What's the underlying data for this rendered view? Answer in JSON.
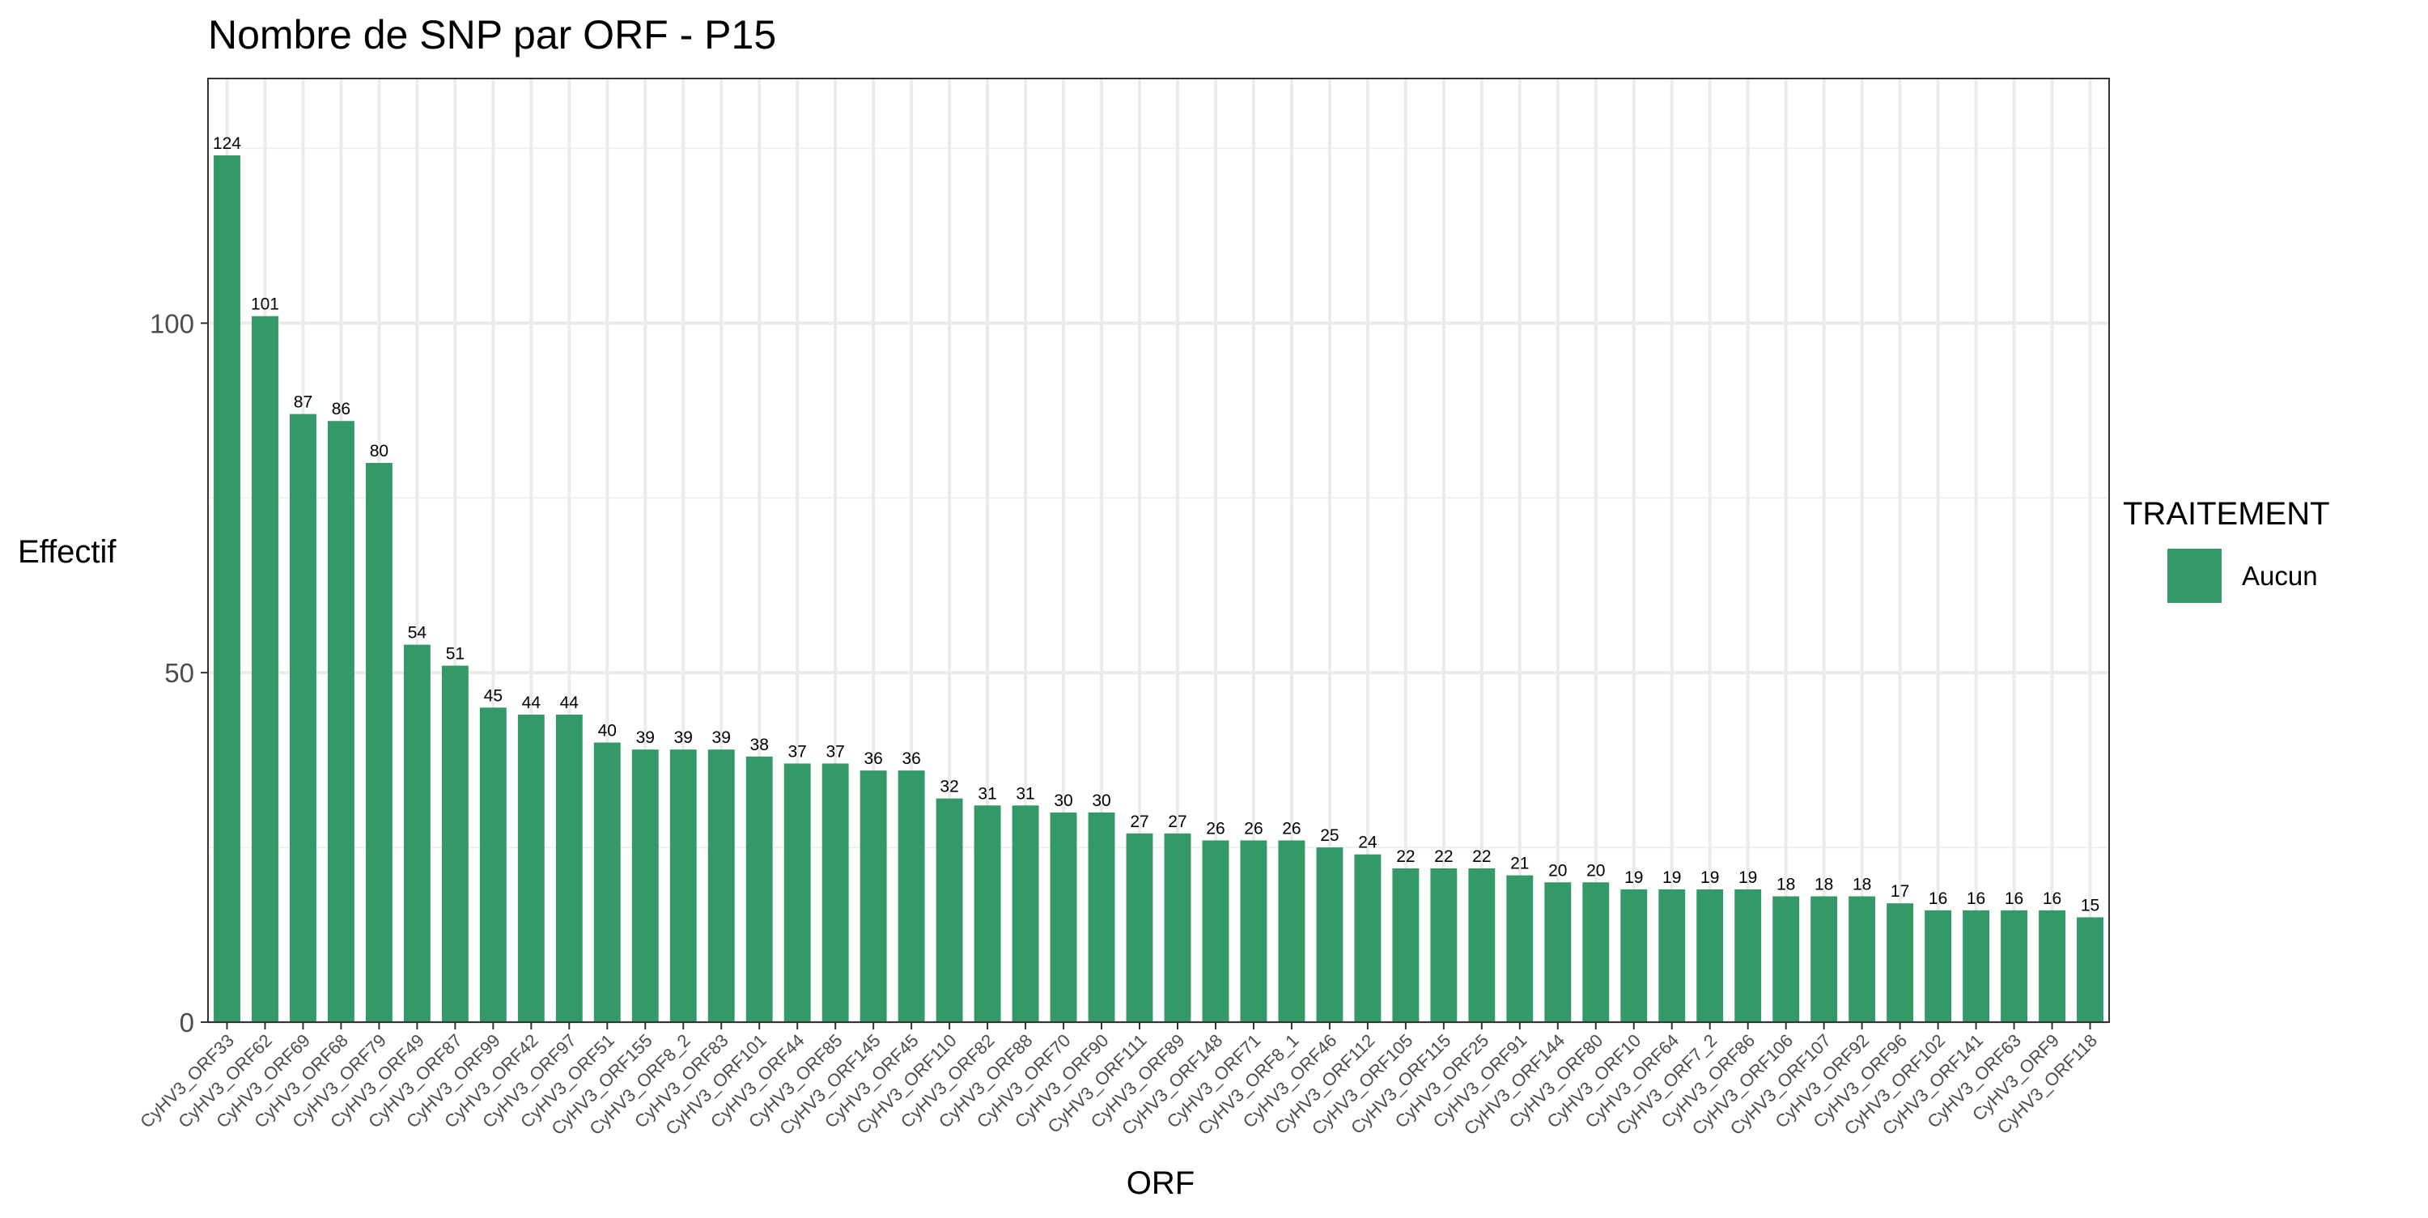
{
  "chart_data": {
    "type": "bar",
    "title": "Nombre de SNP par ORF - P15",
    "xlabel": "ORF",
    "ylabel": "Effectif",
    "ylim": [
      0,
      135
    ],
    "yticks": [
      0,
      50,
      100
    ],
    "grid": true,
    "legend": {
      "title": "TRAITEMENT",
      "placement": "right",
      "entries": [
        {
          "label": "Aucun",
          "color": "#339966"
        }
      ]
    },
    "bar_color": "#339966",
    "categories": [
      "CyHV3_ORF33",
      "CyHV3_ORF62",
      "CyHV3_ORF69",
      "CyHV3_ORF68",
      "CyHV3_ORF79",
      "CyHV3_ORF49",
      "CyHV3_ORF87",
      "CyHV3_ORF99",
      "CyHV3_ORF42",
      "CyHV3_ORF97",
      "CyHV3_ORF51",
      "CyHV3_ORF155",
      "CyHV3_ORF8_2",
      "CyHV3_ORF83",
      "CyHV3_ORF101",
      "CyHV3_ORF44",
      "CyHV3_ORF85",
      "CyHV3_ORF145",
      "CyHV3_ORF45",
      "CyHV3_ORF110",
      "CyHV3_ORF82",
      "CyHV3_ORF88",
      "CyHV3_ORF70",
      "CyHV3_ORF90",
      "CyHV3_ORF111",
      "CyHV3_ORF89",
      "CyHV3_ORF148",
      "CyHV3_ORF71",
      "CyHV3_ORF8_1",
      "CyHV3_ORF46",
      "CyHV3_ORF112",
      "CyHV3_ORF105",
      "CyHV3_ORF115",
      "CyHV3_ORF25",
      "CyHV3_ORF91",
      "CyHV3_ORF144",
      "CyHV3_ORF80",
      "CyHV3_ORF10",
      "CyHV3_ORF64",
      "CyHV3_ORF7_2",
      "CyHV3_ORF86",
      "CyHV3_ORF106",
      "CyHV3_ORF107",
      "CyHV3_ORF92",
      "CyHV3_ORF96",
      "CyHV3_ORF102",
      "CyHV3_ORF141",
      "CyHV3_ORF63",
      "CyHV3_ORF9",
      "CyHV3_ORF118"
    ],
    "values": [
      124,
      101,
      87,
      86,
      80,
      54,
      51,
      45,
      44,
      44,
      40,
      39,
      39,
      39,
      38,
      37,
      37,
      36,
      36,
      32,
      31,
      31,
      30,
      30,
      27,
      27,
      26,
      26,
      26,
      25,
      24,
      22,
      22,
      22,
      21,
      20,
      20,
      19,
      19,
      19,
      19,
      18,
      18,
      18,
      17,
      16,
      16,
      16,
      16,
      15
    ]
  }
}
